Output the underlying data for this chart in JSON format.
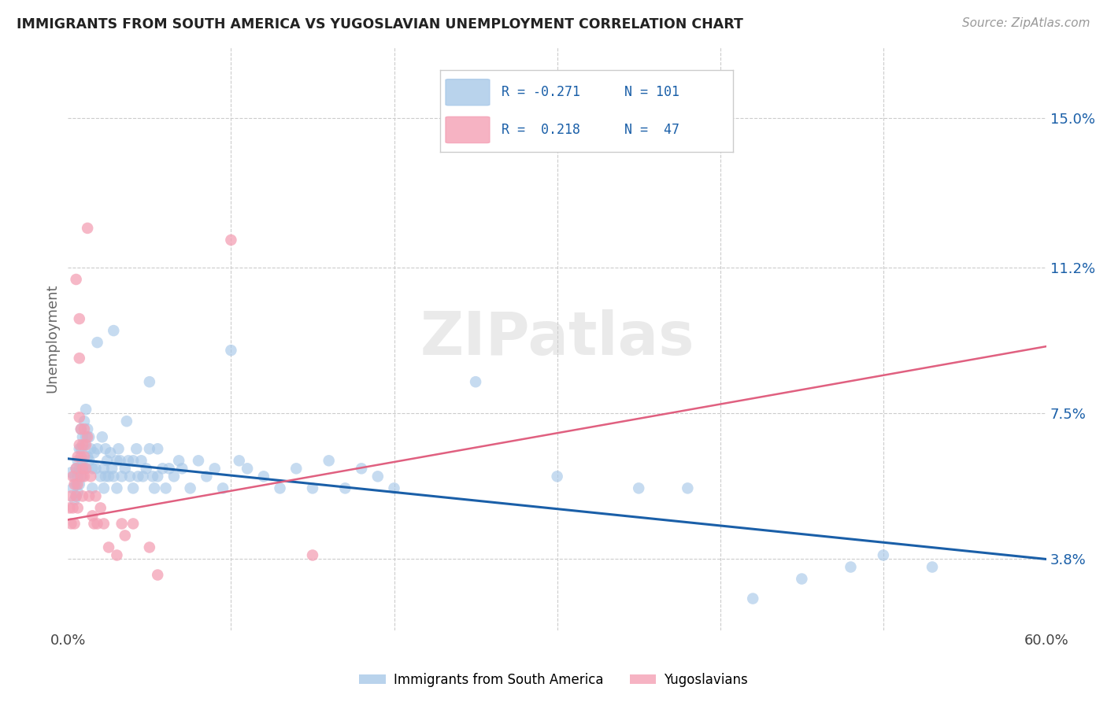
{
  "title": "IMMIGRANTS FROM SOUTH AMERICA VS YUGOSLAVIAN UNEMPLOYMENT CORRELATION CHART",
  "source": "Source: ZipAtlas.com",
  "ylabel": "Unemployment",
  "ytick_labels": [
    "3.8%",
    "7.5%",
    "11.2%",
    "15.0%"
  ],
  "ytick_values": [
    0.038,
    0.075,
    0.112,
    0.15
  ],
  "xlim": [
    0.0,
    0.6
  ],
  "ylim": [
    0.02,
    0.168
  ],
  "blue_color": "#a8c8e8",
  "pink_color": "#f4a0b5",
  "line_blue": "#1a5fa8",
  "line_pink": "#e06080",
  "line_pink_dashed": "#e8a0b0",
  "watermark": "ZIPatlas",
  "blue_line_y_start": 0.0635,
  "blue_line_y_end": 0.038,
  "pink_line_y_start": 0.048,
  "pink_line_y_end": 0.092,
  "blue_scatter": [
    [
      0.002,
      0.06
    ],
    [
      0.003,
      0.056
    ],
    [
      0.004,
      0.059
    ],
    [
      0.004,
      0.053
    ],
    [
      0.005,
      0.061
    ],
    [
      0.005,
      0.057
    ],
    [
      0.005,
      0.054
    ],
    [
      0.006,
      0.063
    ],
    [
      0.006,
      0.059
    ],
    [
      0.006,
      0.055
    ],
    [
      0.007,
      0.066
    ],
    [
      0.007,
      0.061
    ],
    [
      0.007,
      0.057
    ],
    [
      0.008,
      0.071
    ],
    [
      0.008,
      0.066
    ],
    [
      0.008,
      0.061
    ],
    [
      0.009,
      0.069
    ],
    [
      0.009,
      0.063
    ],
    [
      0.009,
      0.059
    ],
    [
      0.01,
      0.073
    ],
    [
      0.01,
      0.067
    ],
    [
      0.01,
      0.061
    ],
    [
      0.011,
      0.076
    ],
    [
      0.011,
      0.069
    ],
    [
      0.012,
      0.071
    ],
    [
      0.012,
      0.064
    ],
    [
      0.013,
      0.069
    ],
    [
      0.013,
      0.063
    ],
    [
      0.014,
      0.066
    ],
    [
      0.015,
      0.061
    ],
    [
      0.015,
      0.056
    ],
    [
      0.016,
      0.065
    ],
    [
      0.017,
      0.061
    ],
    [
      0.018,
      0.093
    ],
    [
      0.018,
      0.066
    ],
    [
      0.02,
      0.059
    ],
    [
      0.021,
      0.069
    ],
    [
      0.022,
      0.061
    ],
    [
      0.022,
      0.056
    ],
    [
      0.023,
      0.066
    ],
    [
      0.023,
      0.059
    ],
    [
      0.024,
      0.063
    ],
    [
      0.025,
      0.059
    ],
    [
      0.026,
      0.065
    ],
    [
      0.027,
      0.061
    ],
    [
      0.028,
      0.096
    ],
    [
      0.028,
      0.059
    ],
    [
      0.03,
      0.063
    ],
    [
      0.03,
      0.056
    ],
    [
      0.031,
      0.066
    ],
    [
      0.032,
      0.063
    ],
    [
      0.033,
      0.059
    ],
    [
      0.035,
      0.061
    ],
    [
      0.036,
      0.073
    ],
    [
      0.037,
      0.063
    ],
    [
      0.038,
      0.059
    ],
    [
      0.04,
      0.063
    ],
    [
      0.04,
      0.056
    ],
    [
      0.042,
      0.066
    ],
    [
      0.043,
      0.059
    ],
    [
      0.045,
      0.063
    ],
    [
      0.046,
      0.059
    ],
    [
      0.048,
      0.061
    ],
    [
      0.05,
      0.083
    ],
    [
      0.05,
      0.066
    ],
    [
      0.052,
      0.059
    ],
    [
      0.053,
      0.056
    ],
    [
      0.055,
      0.066
    ],
    [
      0.055,
      0.059
    ],
    [
      0.058,
      0.061
    ],
    [
      0.06,
      0.056
    ],
    [
      0.062,
      0.061
    ],
    [
      0.065,
      0.059
    ],
    [
      0.068,
      0.063
    ],
    [
      0.07,
      0.061
    ],
    [
      0.075,
      0.056
    ],
    [
      0.08,
      0.063
    ],
    [
      0.085,
      0.059
    ],
    [
      0.09,
      0.061
    ],
    [
      0.095,
      0.056
    ],
    [
      0.1,
      0.091
    ],
    [
      0.105,
      0.063
    ],
    [
      0.11,
      0.061
    ],
    [
      0.12,
      0.059
    ],
    [
      0.13,
      0.056
    ],
    [
      0.14,
      0.061
    ],
    [
      0.15,
      0.056
    ],
    [
      0.16,
      0.063
    ],
    [
      0.17,
      0.056
    ],
    [
      0.18,
      0.061
    ],
    [
      0.19,
      0.059
    ],
    [
      0.2,
      0.056
    ],
    [
      0.25,
      0.083
    ],
    [
      0.3,
      0.059
    ],
    [
      0.35,
      0.056
    ],
    [
      0.38,
      0.056
    ],
    [
      0.42,
      0.028
    ],
    [
      0.45,
      0.033
    ],
    [
      0.48,
      0.036
    ],
    [
      0.5,
      0.039
    ],
    [
      0.53,
      0.036
    ]
  ],
  "pink_scatter": [
    [
      0.001,
      0.051
    ],
    [
      0.002,
      0.047
    ],
    [
      0.002,
      0.054
    ],
    [
      0.003,
      0.059
    ],
    [
      0.003,
      0.051
    ],
    [
      0.004,
      0.057
    ],
    [
      0.004,
      0.047
    ],
    [
      0.005,
      0.061
    ],
    [
      0.005,
      0.054
    ],
    [
      0.005,
      0.109
    ],
    [
      0.006,
      0.064
    ],
    [
      0.006,
      0.057
    ],
    [
      0.006,
      0.051
    ],
    [
      0.007,
      0.099
    ],
    [
      0.007,
      0.089
    ],
    [
      0.007,
      0.074
    ],
    [
      0.007,
      0.067
    ],
    [
      0.008,
      0.071
    ],
    [
      0.008,
      0.064
    ],
    [
      0.008,
      0.059
    ],
    [
      0.009,
      0.067
    ],
    [
      0.009,
      0.061
    ],
    [
      0.009,
      0.054
    ],
    [
      0.01,
      0.071
    ],
    [
      0.01,
      0.064
    ],
    [
      0.01,
      0.059
    ],
    [
      0.011,
      0.067
    ],
    [
      0.011,
      0.061
    ],
    [
      0.012,
      0.122
    ],
    [
      0.012,
      0.069
    ],
    [
      0.013,
      0.054
    ],
    [
      0.014,
      0.059
    ],
    [
      0.015,
      0.049
    ],
    [
      0.016,
      0.047
    ],
    [
      0.017,
      0.054
    ],
    [
      0.018,
      0.047
    ],
    [
      0.02,
      0.051
    ],
    [
      0.022,
      0.047
    ],
    [
      0.025,
      0.041
    ],
    [
      0.03,
      0.039
    ],
    [
      0.033,
      0.047
    ],
    [
      0.035,
      0.044
    ],
    [
      0.04,
      0.047
    ],
    [
      0.05,
      0.041
    ],
    [
      0.055,
      0.034
    ],
    [
      0.1,
      0.119
    ],
    [
      0.15,
      0.039
    ]
  ]
}
